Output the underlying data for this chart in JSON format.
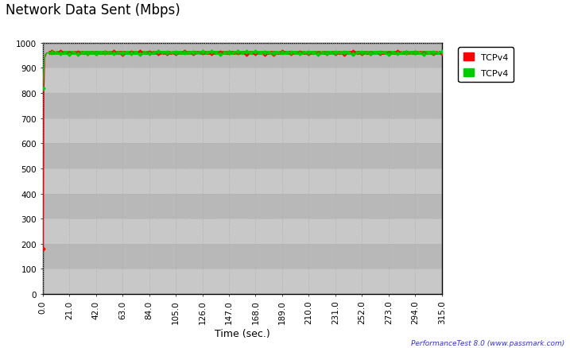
{
  "title": "Network Data Sent (Mbps)",
  "xlabel": "Time (sec.)",
  "watermark": "PerformanceTest 8.0 (www.passmark.com)",
  "background_color": "#c8c8c8",
  "outer_bg_color": "#ffffff",
  "ylim": [
    0,
    1000
  ],
  "xlim": [
    0.0,
    315.0
  ],
  "yticks": [
    0,
    100,
    200,
    300,
    400,
    500,
    600,
    700,
    800,
    900,
    1000
  ],
  "xticks": [
    0.0,
    21.0,
    42.0,
    63.0,
    84.0,
    105.0,
    126.0,
    147.0,
    168.0,
    189.0,
    210.0,
    231.0,
    252.0,
    273.0,
    294.0,
    315.0
  ],
  "legend_labels": [
    "TCPv4",
    "TCPv4"
  ],
  "legend_colors": [
    "#ff0000",
    "#00cc00"
  ],
  "grid_color": "#b0b0b0",
  "title_fontsize": 12,
  "tick_fontsize": 7.5,
  "legend_fontsize": 8,
  "band_colors": [
    "#c8c8c8",
    "#b8b8b8"
  ],
  "band_edges": [
    0,
    100,
    200,
    300,
    400,
    500,
    600,
    700,
    800,
    900,
    1000
  ]
}
